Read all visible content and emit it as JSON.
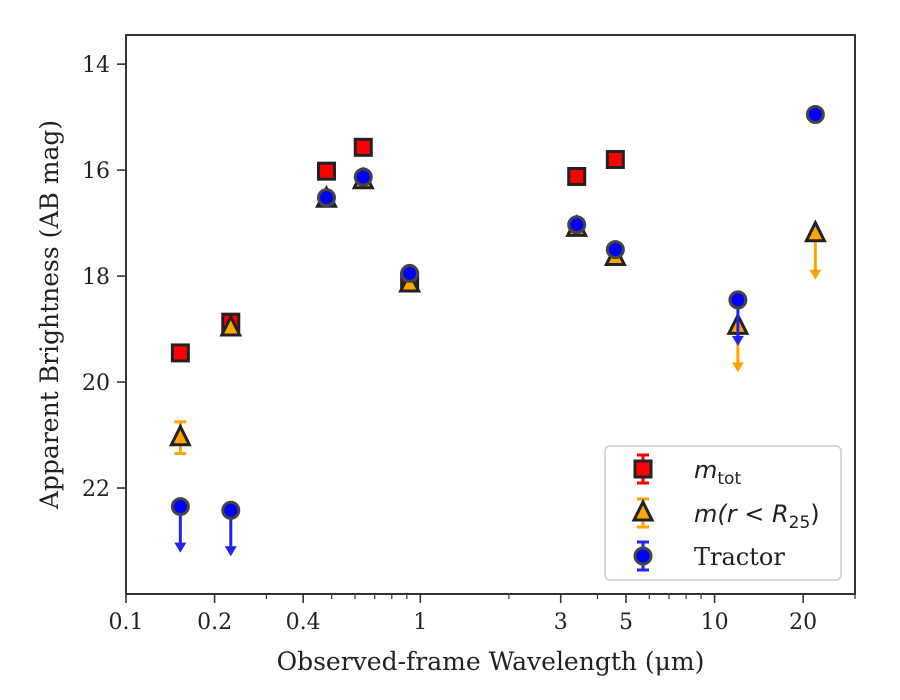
{
  "chart_data": {
    "type": "scatter",
    "xscale": "log",
    "yaxis_inverted": true,
    "xlim": [
      0.1,
      30
    ],
    "ylim": [
      24.0,
      13.45
    ],
    "xlabel": "Observed-frame Wavelength (μm)",
    "ylabel": "Apparent Brightness (AB mag)",
    "xticks": [
      {
        "value": 0.1,
        "label": "0.1"
      },
      {
        "value": 0.2,
        "label": "0.2"
      },
      {
        "value": 0.4,
        "label": "0.4"
      },
      {
        "value": 1,
        "label": "1"
      },
      {
        "value": 3,
        "label": "3"
      },
      {
        "value": 5,
        "label": "5"
      },
      {
        "value": 10,
        "label": "10"
      },
      {
        "value": 20,
        "label": "20"
      }
    ],
    "yticks": [
      {
        "value": 14,
        "label": "14"
      },
      {
        "value": 16,
        "label": "16"
      },
      {
        "value": 18,
        "label": "18"
      },
      {
        "value": 20,
        "label": "20"
      },
      {
        "value": 22,
        "label": "22"
      }
    ],
    "legend_position": "lower-right",
    "series": [
      {
        "name": "m_tot",
        "marker": "square",
        "color": "#ff0000",
        "errcolor": "#ff0000",
        "points": [
          {
            "x": 0.153,
            "y": 19.45
          },
          {
            "x": 0.227,
            "y": 18.87
          },
          {
            "x": 0.48,
            "y": 16.02
          },
          {
            "x": 0.64,
            "y": 15.57
          },
          {
            "x": 0.92,
            "y": 18.1
          },
          {
            "x": 3.4,
            "y": 16.12
          },
          {
            "x": 4.6,
            "y": 15.8
          }
        ]
      },
      {
        "name": "m(r<R_25)",
        "marker": "triangle",
        "color": "#ffa500",
        "errcolor": "#ffa500",
        "points": [
          {
            "x": 0.153,
            "y": 21.05,
            "err": 0.3
          },
          {
            "x": 0.227,
            "y": 18.98
          },
          {
            "x": 0.48,
            "y": 16.55
          },
          {
            "x": 0.64,
            "y": 16.2
          },
          {
            "x": 0.92,
            "y": 18.15
          },
          {
            "x": 3.4,
            "y": 17.1
          },
          {
            "x": 4.6,
            "y": 17.65
          },
          {
            "x": 12.0,
            "y": 18.95,
            "upper_limit": true
          },
          {
            "x": 22.0,
            "y": 17.2,
            "upper_limit": true
          }
        ]
      },
      {
        "name": "Tractor",
        "marker": "circle",
        "color": "#0000ff",
        "errcolor": "#2222ee",
        "points": [
          {
            "x": 0.153,
            "y": 22.35,
            "upper_limit": true
          },
          {
            "x": 0.227,
            "y": 22.42,
            "upper_limit": true
          },
          {
            "x": 0.48,
            "y": 16.52
          },
          {
            "x": 0.64,
            "y": 16.13
          },
          {
            "x": 0.92,
            "y": 17.95
          },
          {
            "x": 3.4,
            "y": 17.03
          },
          {
            "x": 4.6,
            "y": 17.5
          },
          {
            "x": 12.0,
            "y": 18.45,
            "upper_limit": true
          },
          {
            "x": 22.0,
            "y": 14.95
          }
        ]
      }
    ]
  },
  "legend": {
    "items": [
      {
        "base": "m",
        "sub": "tot"
      },
      {
        "base": "m(r < R",
        "sub": "25",
        "tail": ")"
      },
      {
        "label": "Tractor"
      }
    ]
  }
}
